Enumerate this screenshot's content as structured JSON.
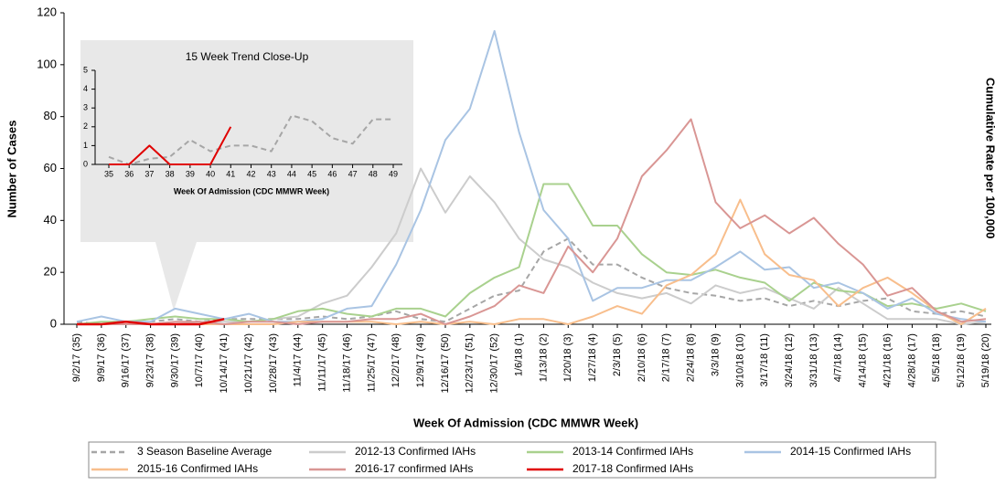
{
  "chart_data": [
    {
      "type": "line",
      "y_label": "Number of Cases",
      "x_label": "Week Of Admission  (CDC MMWR Week)",
      "y2_label": "Cumulative Rate per 100,000",
      "categories": [
        "9/2/17 (35)",
        "9/9/17 (36)",
        "9/16/17 (37)",
        "9/23/17 (38)",
        "9/30/17 (39)",
        "10/7/17 (40)",
        "10/14/17 (41)",
        "10/21/17 (42)",
        "10/28/17 (43)",
        "11/4/17 (44)",
        "11/11/17 (45)",
        "11/18/17 (46)",
        "11/25/17 (47)",
        "12/2/17 (48)",
        "12/9/17 (49)",
        "12/16/17 (50)",
        "12/23/17 (51)",
        "12/30/17 (52)",
        "1/6/18 (1)",
        "1/13/18 (2)",
        "1/20/18 (3)",
        "1/27/18 (4)",
        "2/3/18 (5)",
        "2/10/18 (6)",
        "2/17/18 (7)",
        "2/24/18 (8)",
        "3/3/18 (9)",
        "3/10/18 (10)",
        "3/17/18 (11)",
        "3/24/18 (12)",
        "3/31/18 (13)",
        "4/7/18 (14)",
        "4/14/18 (15)",
        "4/21/18 (16)",
        "4/28/18 (17)",
        "5/5/18 (18)",
        "5/12/18 (19)",
        "5/19/18 (20)"
      ],
      "ylim": [
        0,
        120
      ],
      "yticks": [
        0,
        20,
        40,
        60,
        80,
        100,
        120
      ],
      "series": [
        {
          "name": "3 Season Baseline Average",
          "color": "#a6a6a6",
          "dashed": true,
          "values": [
            1,
            0,
            1,
            1,
            2,
            1,
            2,
            2,
            2,
            2,
            3,
            2,
            3,
            5,
            2,
            1,
            6,
            11,
            13,
            28,
            33,
            23,
            23,
            18,
            14,
            12,
            11,
            9,
            10,
            7,
            9,
            7,
            9,
            10,
            5,
            4,
            5,
            3
          ]
        },
        {
          "name": "2012-13 Confirmed IAHs",
          "color": "#cccccc",
          "values": [
            0,
            0,
            0,
            0,
            0,
            1,
            1,
            1,
            2,
            3,
            8,
            11,
            22,
            35,
            60,
            43,
            57,
            47,
            33,
            25,
            22,
            16,
            12,
            10,
            12,
            8,
            15,
            12,
            14,
            10,
            6,
            14,
            8,
            2,
            2,
            2,
            0,
            1
          ]
        },
        {
          "name": "2013-14 Confirmed IAHs",
          "color": "#a9d18e",
          "values": [
            0,
            1,
            1,
            2,
            3,
            2,
            2,
            1,
            2,
            5,
            6,
            4,
            3,
            6,
            6,
            3,
            12,
            18,
            22,
            54,
            54,
            38,
            38,
            27,
            20,
            19,
            21,
            18,
            16,
            9,
            16,
            13,
            12,
            7,
            8,
            6,
            8,
            5
          ]
        },
        {
          "name": "2014-15 Confirmed IAHs",
          "color": "#a9c4e3",
          "values": [
            1,
            3,
            1,
            1,
            6,
            4,
            2,
            4,
            1,
            1,
            2,
            6,
            7,
            23,
            44,
            71,
            83,
            113,
            74,
            44,
            33,
            9,
            14,
            14,
            17,
            17,
            22,
            28,
            21,
            22,
            14,
            16,
            12,
            6,
            10,
            4,
            2,
            1
          ]
        },
        {
          "name": "2015-16 Confirmed IAHs",
          "color": "#f8be8c",
          "values": [
            0,
            0,
            1,
            0,
            0,
            0,
            0,
            0,
            0,
            1,
            1,
            1,
            1,
            0,
            1,
            0,
            1,
            0,
            2,
            2,
            0,
            3,
            7,
            4,
            15,
            19,
            27,
            48,
            27,
            19,
            17,
            7,
            14,
            18,
            12,
            5,
            0,
            6
          ]
        },
        {
          "name": "2016-17 confirmed IAHs",
          "color": "#d99694",
          "values": [
            0,
            0,
            0,
            0,
            1,
            1,
            0,
            1,
            1,
            0,
            1,
            1,
            2,
            2,
            4,
            0,
            3,
            7,
            15,
            12,
            30,
            20,
            33,
            57,
            67,
            79,
            47,
            37,
            42,
            35,
            41,
            31,
            23,
            11,
            14,
            5,
            1,
            2
          ]
        },
        {
          "name": "2017-18 Confirmed IAHs",
          "color": "#e00000",
          "width": 2.5,
          "values": [
            0,
            0,
            1,
            0,
            0,
            0,
            2,
            null,
            null,
            null,
            null,
            null,
            null,
            null,
            null,
            null,
            null,
            null,
            null,
            null,
            null,
            null,
            null,
            null,
            null,
            null,
            null,
            null,
            null,
            null,
            null,
            null,
            null,
            null,
            null,
            null,
            null,
            null
          ]
        }
      ]
    },
    {
      "type": "line",
      "title": "15 Week Trend Close-Up",
      "x_label": "Week Of Admission  (CDC MMWR Week)",
      "categories": [
        "35",
        "36",
        "37",
        "38",
        "39",
        "40",
        "41",
        "42",
        "43",
        "44",
        "45",
        "46",
        "47",
        "48",
        "49"
      ],
      "ylim": [
        0,
        5
      ],
      "yticks": [
        0,
        1,
        2,
        3,
        4,
        5
      ],
      "series": [
        {
          "color": "#a6a6a6",
          "dashed": true,
          "values": [
            0.4,
            0,
            0.3,
            0.4,
            1.3,
            0.7,
            1,
            1,
            0.7,
            2.6,
            2.3,
            1.4,
            1.1,
            2.4,
            2.4
          ]
        },
        {
          "color": "#e00000",
          "width": 2,
          "values": [
            0,
            0,
            1,
            0,
            0,
            0,
            2,
            null,
            null,
            null,
            null,
            null,
            null,
            null,
            null
          ]
        }
      ]
    }
  ]
}
